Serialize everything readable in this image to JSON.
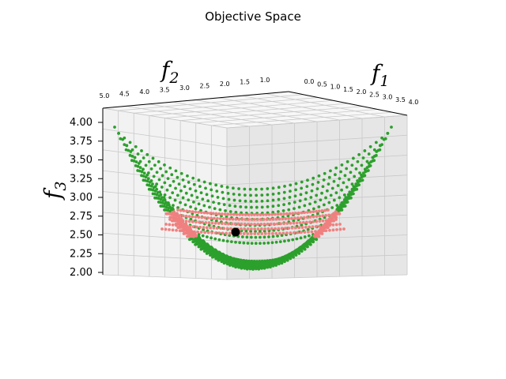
{
  "chart_data": {
    "type": "scatter",
    "projection": "3d",
    "title": "Objective Space",
    "axes": {
      "f1": {
        "label_base": "f",
        "label_sub": "1",
        "range": [
          0.0,
          4.0
        ],
        "ticks": [
          "0.0",
          "0.5",
          "1.0",
          "1.5",
          "2.0",
          "2.5",
          "3.0",
          "3.5",
          "4.0"
        ]
      },
      "f2": {
        "label_base": "f",
        "label_sub": "2",
        "range": [
          5.0,
          1.0
        ],
        "ticks": [
          "5.0",
          "4.5",
          "4.0",
          "3.5",
          "3.0",
          "2.5",
          "2.0",
          "1.5",
          "1.0"
        ]
      },
      "f3": {
        "label_base": "f",
        "label_sub": "3",
        "range": [
          2.0,
          4.0
        ],
        "ticks": [
          "2.00",
          "2.25",
          "2.50",
          "2.75",
          "3.00",
          "3.25",
          "3.50",
          "3.75",
          "4.00"
        ]
      }
    },
    "grid": true,
    "series": [
      {
        "marker": "dot",
        "color": "#2ca02c",
        "description_values": "paraboloid surface of candidate points, f3 from ~2.0 to ~4.0"
      },
      {
        "marker": "dot",
        "color": "#f08080",
        "description_values": "highlighted band of points near f3 ≈ 2.4–2.6"
      },
      {
        "marker": "large-dot",
        "color": "#000000",
        "points": [
          [
            1.6,
            2.4,
            2.45
          ]
        ]
      }
    ]
  }
}
